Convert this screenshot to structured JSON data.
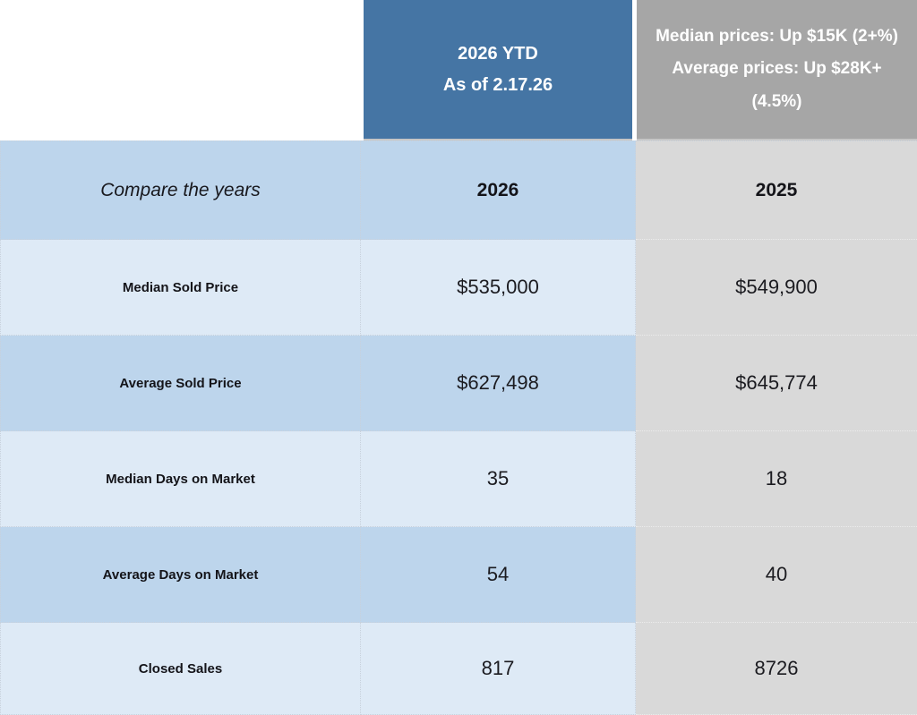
{
  "colors": {
    "header_blue": "#4575A4",
    "header_gray": "#A6A6A6",
    "row_blue_medium": "#BDD5EC",
    "row_blue_light": "#DEEAF6",
    "column_gray": "#D9D9D9",
    "header_text": "#FFFFFF"
  },
  "chart_data": {
    "type": "table",
    "title": "Compare the years",
    "header": {
      "col_2026_line1": "2026 YTD",
      "col_2026_line2": "As of 2.17.26",
      "col_2025_summary": "Median prices: Up $15K (2+%) Average prices: Up $28K+ (4.5%)"
    },
    "columns": [
      "Compare the years",
      "2026",
      "2025"
    ],
    "rows": [
      {
        "label": "Median Sold Price",
        "y2026": "$535,000",
        "y2025": "$549,900"
      },
      {
        "label": "Average Sold Price",
        "y2026": "$627,498",
        "y2025": "$645,774"
      },
      {
        "label": "Median Days on Market",
        "y2026": "35",
        "y2025": "18"
      },
      {
        "label": "Average Days on Market",
        "y2026": "54",
        "y2025": "40"
      },
      {
        "label": "Closed Sales",
        "y2026": "817",
        "y2025": "8726"
      }
    ]
  }
}
